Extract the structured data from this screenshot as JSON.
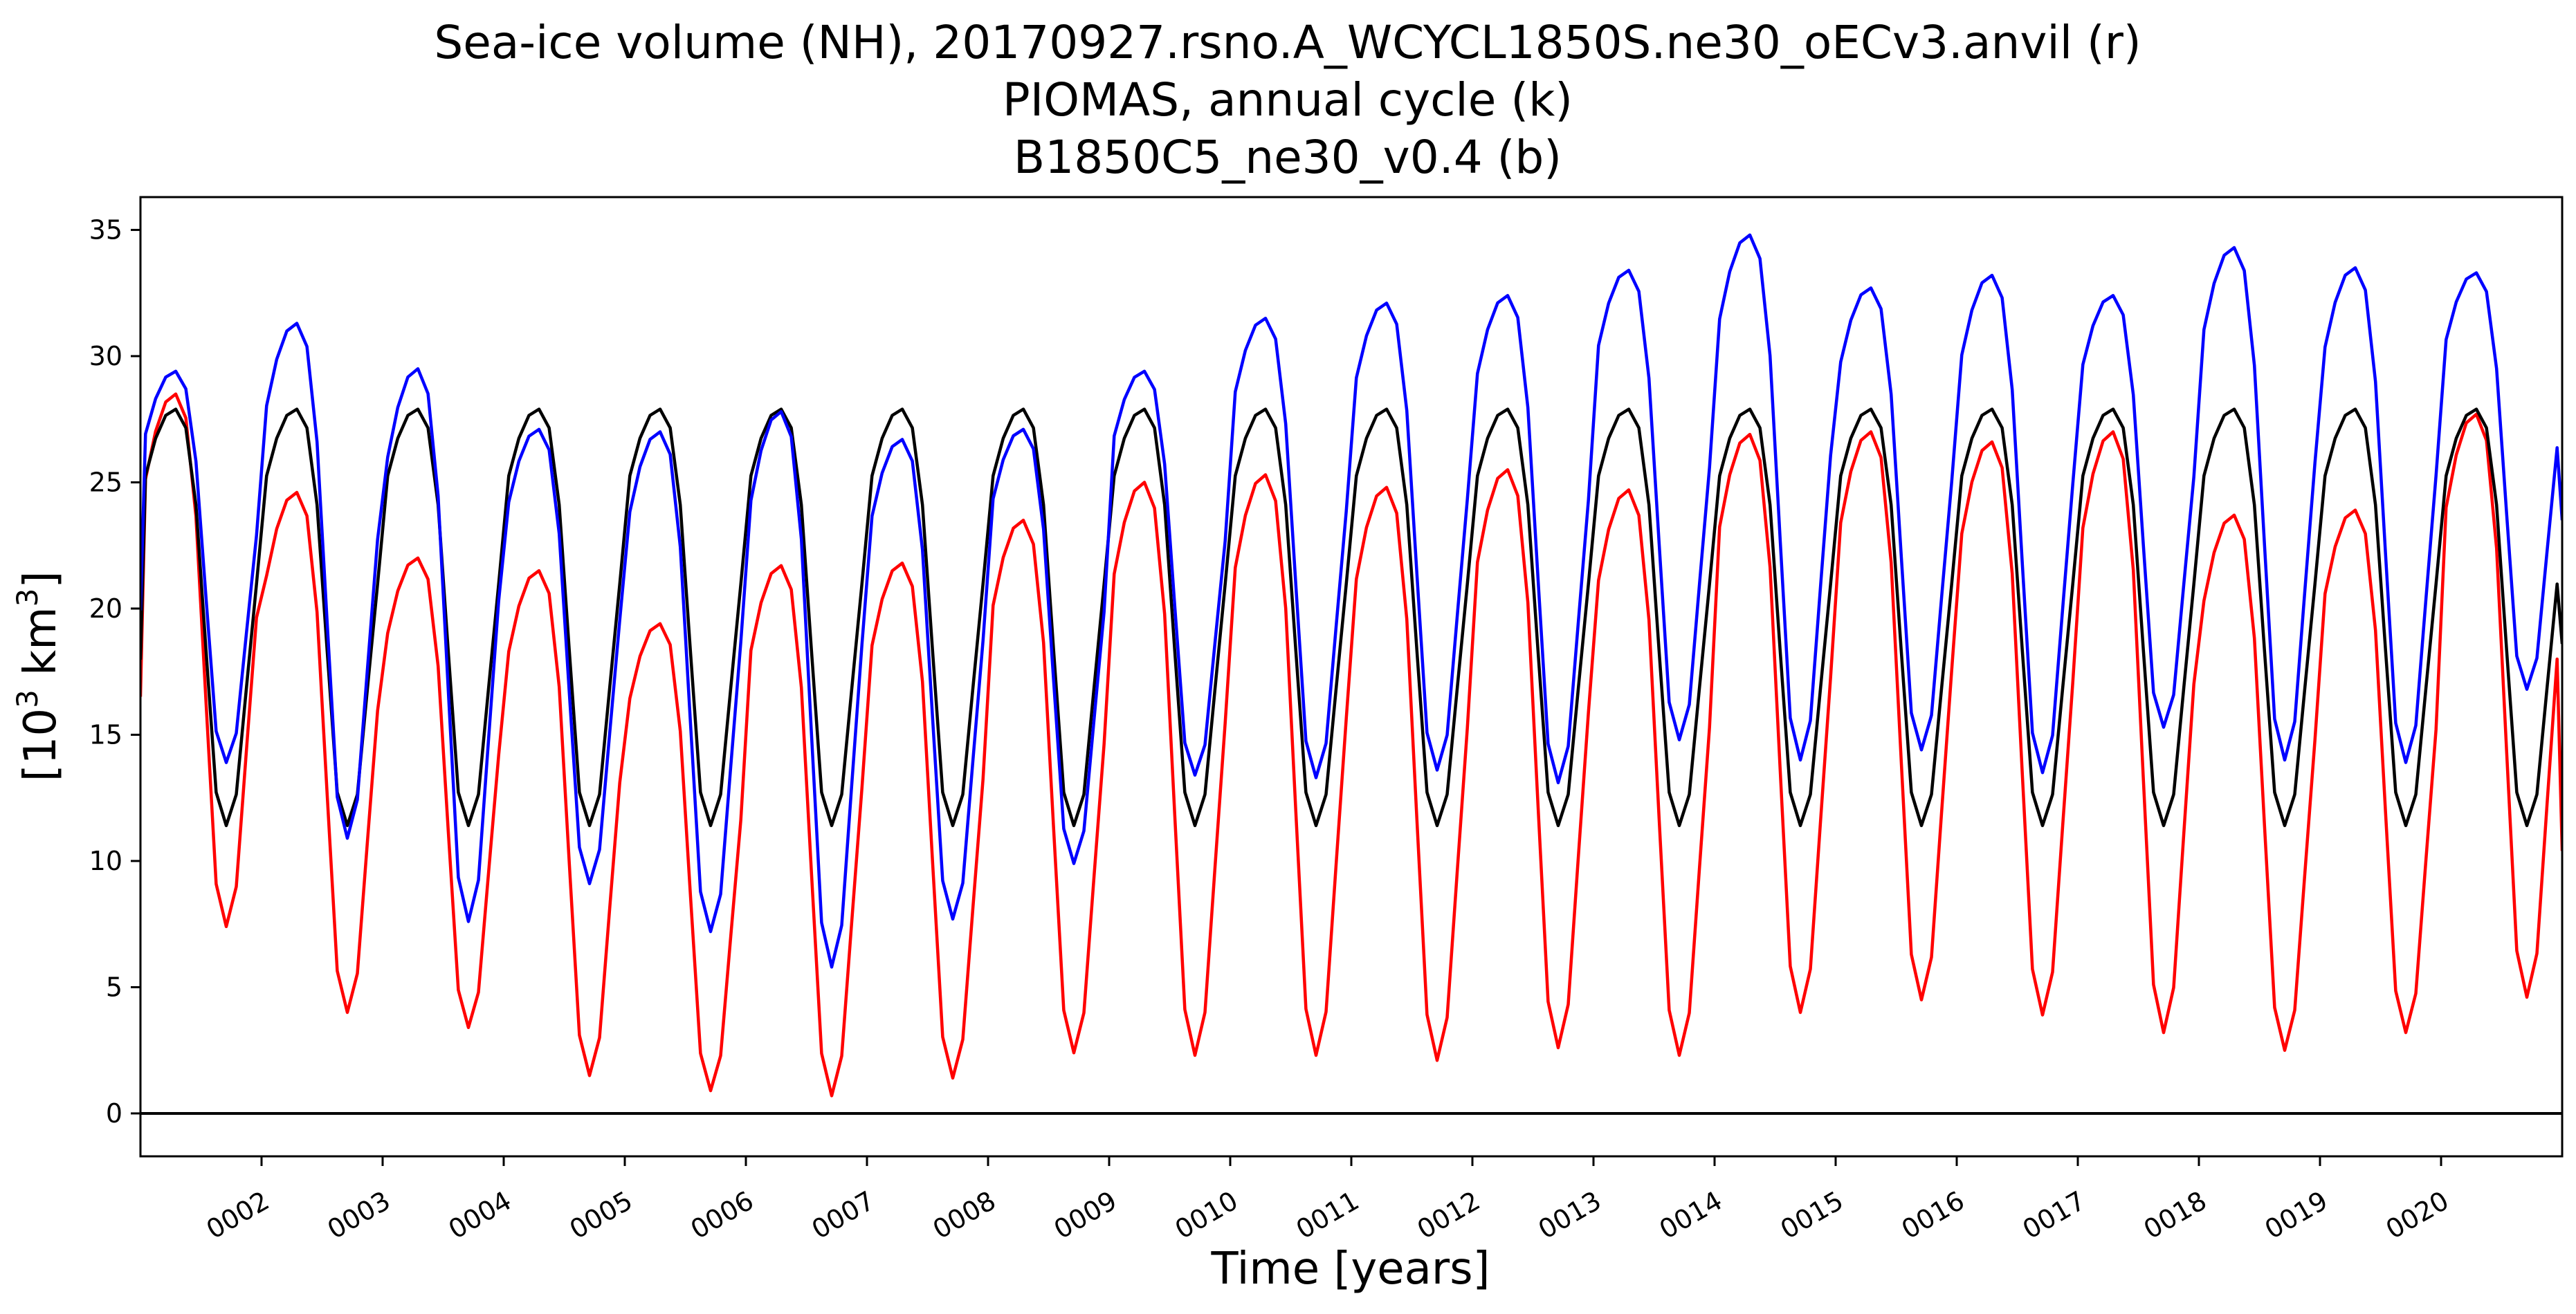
{
  "chart_data": {
    "type": "line",
    "title_lines": [
      "Sea-ice volume (NH), 20170927.rsno.A_WCYCL1850S.ne30_oECv3.anvil (r)",
      "PIOMAS, annual cycle (k)",
      "B1850C5_ne30_v0.4 (b)"
    ],
    "xlabel": "Time [years]",
    "ylabel_base": "[10",
    "ylabel_sup": "3",
    "ylabel_unit": " km",
    "ylabel_sup2": "3",
    "ylabel_end": "]",
    "xlim": [
      1.0,
      21.0
    ],
    "ylim": [
      -1.7,
      36.3
    ],
    "yticks": [
      0,
      5,
      10,
      15,
      20,
      25,
      30,
      35
    ],
    "xticks": [
      {
        "x": 2,
        "label": "0002"
      },
      {
        "x": 3,
        "label": "0003"
      },
      {
        "x": 4,
        "label": "0004"
      },
      {
        "x": 5,
        "label": "0005"
      },
      {
        "x": 6,
        "label": "0006"
      },
      {
        "x": 7,
        "label": "0007"
      },
      {
        "x": 8,
        "label": "0008"
      },
      {
        "x": 9,
        "label": "0009"
      },
      {
        "x": 10,
        "label": "0010"
      },
      {
        "x": 11,
        "label": "0011"
      },
      {
        "x": 12,
        "label": "0012"
      },
      {
        "x": 13,
        "label": "0013"
      },
      {
        "x": 14,
        "label": "0014"
      },
      {
        "x": 15,
        "label": "0015"
      },
      {
        "x": 16,
        "label": "0016"
      },
      {
        "x": 17,
        "label": "0017"
      },
      {
        "x": 18,
        "label": "0018"
      },
      {
        "x": 19,
        "label": "0019"
      },
      {
        "x": 20,
        "label": "0020"
      }
    ],
    "reference_line_y": 0,
    "series": [
      {
        "color": "#ff0000",
        "annual_max": [
          28.5,
          24.6,
          22.0,
          21.5,
          19.4,
          21.7,
          21.8,
          23.5,
          25.0,
          25.3,
          24.8,
          25.5,
          24.7,
          26.9,
          27.0,
          26.6,
          27.0,
          23.7,
          23.9,
          27.7
        ],
        "annual_min": [
          7.4,
          4.0,
          3.4,
          1.5,
          0.9,
          0.7,
          1.4,
          2.4,
          2.3,
          2.3,
          2.1,
          2.6,
          2.3,
          4.0,
          4.5,
          3.9,
          3.2,
          2.5,
          3.2,
          4.6
        ],
        "end_value": 10.4
      },
      {
        "color": "#000000",
        "annual_max": [
          27.9,
          27.9,
          27.9,
          27.9,
          27.9,
          27.9,
          27.9,
          27.9,
          27.9,
          27.9,
          27.9,
          27.9,
          27.9,
          27.9,
          27.9,
          27.9,
          27.9,
          27.9,
          27.9,
          27.9
        ],
        "annual_min": [
          11.4,
          11.4,
          11.4,
          11.4,
          11.4,
          11.4,
          11.4,
          11.4,
          11.4,
          11.4,
          11.4,
          11.4,
          11.4,
          11.4,
          11.4,
          11.4,
          11.4,
          11.4,
          11.4,
          11.4
        ],
        "end_value": 18.6
      },
      {
        "color": "#0000ff",
        "annual_max": [
          29.4,
          31.3,
          29.5,
          27.1,
          27.0,
          27.8,
          26.7,
          27.1,
          29.4,
          31.5,
          32.1,
          32.4,
          33.4,
          34.8,
          32.7,
          33.2,
          32.4,
          34.3,
          33.5,
          33.3
        ],
        "annual_min": [
          13.9,
          10.9,
          7.6,
          9.1,
          7.2,
          5.8,
          7.7,
          9.9,
          13.4,
          13.3,
          13.6,
          13.1,
          14.8,
          14.0,
          14.4,
          13.5,
          15.3,
          14.0,
          13.9,
          16.8
        ],
        "end_value": 23.5
      }
    ]
  }
}
